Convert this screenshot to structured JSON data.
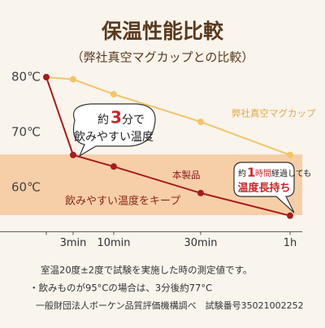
{
  "chart_data": {
    "type": "line",
    "title": "保温性能比較",
    "subtitle": "（弊社真空マグカップとの比較）",
    "categories": [
      null,
      "3min",
      "10min",
      "30min",
      "1h"
    ],
    "series": [
      {
        "name": "弊社真空マグカップ",
        "color": "#f2c46a",
        "values": [
          80,
          79.6,
          76.9,
          71.9,
          65.9
        ]
      },
      {
        "name": "本製品",
        "color": "#a51d1d",
        "values": [
          80,
          65.9,
          63.8,
          59,
          54.9
        ]
      }
    ],
    "ylim": [
      52,
      86
    ],
    "yticks": [
      {
        "value": 80,
        "label": "80℃"
      },
      {
        "value": 70,
        "label": "70℃"
      },
      {
        "value": 60,
        "label": "60℃"
      }
    ],
    "grid": false,
    "band": {
      "range": [
        55,
        66
      ],
      "label": "飲みやすい温度をキープ",
      "color": "#f6c79c"
    },
    "callout_1": {
      "prefix": "約",
      "number": "3",
      "suffix": "分で",
      "line2": "飲みやすい温度"
    },
    "callout_2": {
      "prefix": "約",
      "number": "1",
      "unit": "時間",
      "suffix": "経過しても",
      "line2": "温度長持ち"
    },
    "notes": [
      "室温20度±2度で試験を実施した時の測定値です。",
      "・飲みものが95°Cの場合は、3分後約77°C",
      "一般財団法人ボーケン品質評価機構調べ　試験番号35021002252"
    ]
  }
}
